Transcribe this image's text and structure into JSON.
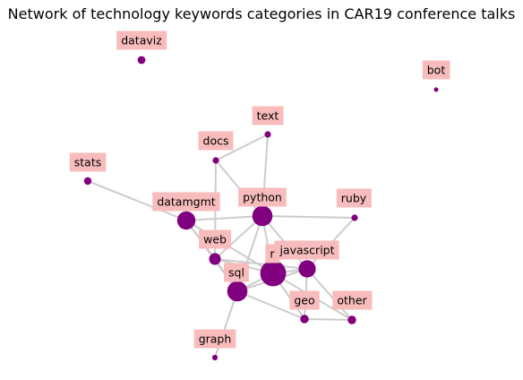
{
  "chart_data": {
    "type": "network",
    "title": "Network of technology keywords categories in CAR19 conference talks",
    "colors": {
      "node": "#800080",
      "edge": "#cccccc",
      "label_box": "#f8bcbc"
    },
    "nodes": [
      {
        "id": "dataviz",
        "label": "dataviz",
        "weight": 1.2
      },
      {
        "id": "bot",
        "label": "bot",
        "weight": 0.4
      },
      {
        "id": "text",
        "label": "text",
        "weight": 0.8
      },
      {
        "id": "docs",
        "label": "docs",
        "weight": 0.8
      },
      {
        "id": "stats",
        "label": "stats",
        "weight": 1.1
      },
      {
        "id": "datamgmt",
        "label": "datamgmt",
        "weight": 6.5
      },
      {
        "id": "python",
        "label": "python",
        "weight": 8.0
      },
      {
        "id": "ruby",
        "label": "ruby",
        "weight": 0.8
      },
      {
        "id": "web",
        "label": "web",
        "weight": 2.7
      },
      {
        "id": "r",
        "label": "r",
        "weight": 13.0
      },
      {
        "id": "javascript",
        "label": "javascript",
        "weight": 5.8
      },
      {
        "id": "sql",
        "label": "sql",
        "weight": 8.0
      },
      {
        "id": "geo",
        "label": "geo",
        "weight": 1.4
      },
      {
        "id": "other",
        "label": "other",
        "weight": 1.4
      },
      {
        "id": "graph",
        "label": "graph",
        "weight": 0.6
      }
    ],
    "edges": [
      [
        "stats",
        "datamgmt"
      ],
      [
        "datamgmt",
        "python"
      ],
      [
        "datamgmt",
        "web"
      ],
      [
        "datamgmt",
        "sql"
      ],
      [
        "datamgmt",
        "r"
      ],
      [
        "docs",
        "text"
      ],
      [
        "docs",
        "python"
      ],
      [
        "docs",
        "web"
      ],
      [
        "text",
        "python"
      ],
      [
        "python",
        "ruby"
      ],
      [
        "python",
        "web"
      ],
      [
        "python",
        "r"
      ],
      [
        "python",
        "sql"
      ],
      [
        "python",
        "javascript"
      ],
      [
        "ruby",
        "javascript"
      ],
      [
        "web",
        "r"
      ],
      [
        "web",
        "sql"
      ],
      [
        "web",
        "javascript"
      ],
      [
        "r",
        "javascript"
      ],
      [
        "r",
        "sql"
      ],
      [
        "r",
        "geo"
      ],
      [
        "r",
        "other"
      ],
      [
        "javascript",
        "geo"
      ],
      [
        "javascript",
        "other"
      ],
      [
        "javascript",
        "sql"
      ],
      [
        "sql",
        "graph"
      ],
      [
        "sql",
        "geo"
      ],
      [
        "geo",
        "other"
      ]
    ]
  }
}
